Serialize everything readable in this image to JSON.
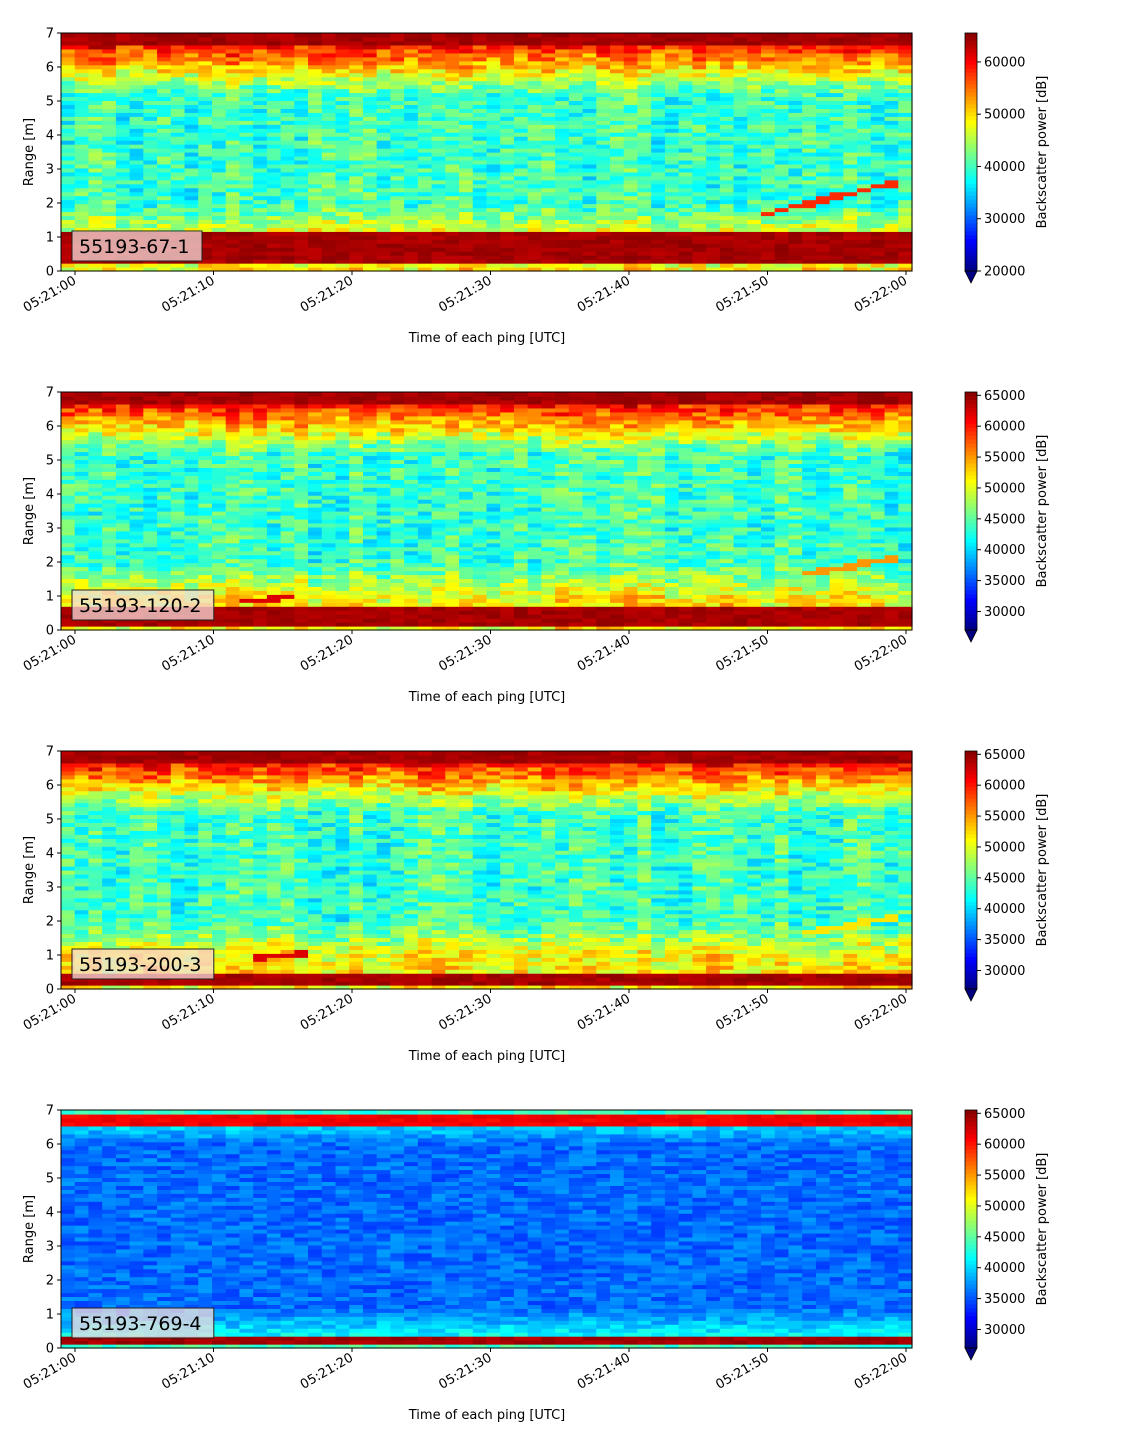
{
  "chart_data": [
    {
      "type": "heatmap",
      "label": "55193-67-1",
      "xlabel": "Time of each ping [UTC]",
      "ylabel": "Range [m]",
      "x_ticks": [
        "05:21:00",
        "05:21:10",
        "05:21:20",
        "05:21:30",
        "05:21:40",
        "05:21:50",
        "05:22:00"
      ],
      "xlim": [
        "05:21:00",
        "05:22:00"
      ],
      "y_ticks": [
        0,
        1,
        2,
        3,
        4,
        5,
        6,
        7
      ],
      "ylim": [
        0,
        7
      ],
      "colorbar": {
        "label": "Backscatter power [dB]",
        "ticks": [
          20000,
          30000,
          40000,
          50000,
          60000
        ],
        "range": [
          20000,
          65535
        ],
        "extend": "min",
        "colormap": "jet"
      },
      "features": [
        {
          "name": "bottom strong band",
          "range_m": [
            0.2,
            1.2
          ],
          "level": 65000
        },
        {
          "name": "surface band",
          "range_m": [
            6.6,
            7.0
          ],
          "level": 65000
        },
        {
          "name": "target trace",
          "time": [
            "05:21:50",
            "05:21:59"
          ],
          "range_m": [
            1.7,
            2.6
          ],
          "level": 58000
        }
      ]
    },
    {
      "type": "heatmap",
      "label": "55193-120-2",
      "xlabel": "Time of each ping [UTC]",
      "ylabel": "Range [m]",
      "x_ticks": [
        "05:21:00",
        "05:21:10",
        "05:21:20",
        "05:21:30",
        "05:21:40",
        "05:21:50",
        "05:22:00"
      ],
      "xlim": [
        "05:21:00",
        "05:22:00"
      ],
      "y_ticks": [
        0,
        1,
        2,
        3,
        4,
        5,
        6,
        7
      ],
      "ylim": [
        0,
        7
      ],
      "colorbar": {
        "label": "Backscatter power [dB]",
        "ticks": [
          30000,
          35000,
          40000,
          45000,
          50000,
          55000,
          60000,
          65000
        ],
        "range": [
          27000,
          65535
        ],
        "extend": "min",
        "colormap": "jet"
      },
      "features": [
        {
          "name": "bottom strong band",
          "range_m": [
            0.15,
            0.65
          ],
          "level": 65000
        },
        {
          "name": "surface band",
          "range_m": [
            6.6,
            7.0
          ],
          "level": 65000
        },
        {
          "name": "target trace",
          "time": [
            "05:21:53",
            "05:21:59"
          ],
          "range_m": [
            1.7,
            2.1
          ],
          "level": 55000
        },
        {
          "name": "target trace",
          "time": [
            "05:21:12",
            "05:21:16"
          ],
          "range_m": [
            0.85,
            1.0
          ],
          "level": 62000
        }
      ]
    },
    {
      "type": "heatmap",
      "label": "55193-200-3",
      "xlabel": "Time of each ping [UTC]",
      "ylabel": "Range [m]",
      "x_ticks": [
        "05:21:00",
        "05:21:10",
        "05:21:20",
        "05:21:30",
        "05:21:40",
        "05:21:50",
        "05:22:00"
      ],
      "xlim": [
        "05:21:00",
        "05:22:00"
      ],
      "y_ticks": [
        0,
        1,
        2,
        3,
        4,
        5,
        6,
        7
      ],
      "ylim": [
        0,
        7
      ],
      "colorbar": {
        "label": "Backscatter power [dB]",
        "ticks": [
          30000,
          35000,
          40000,
          45000,
          50000,
          55000,
          60000,
          65000
        ],
        "range": [
          27000,
          65535
        ],
        "extend": "min",
        "colormap": "jet"
      },
      "features": [
        {
          "name": "bottom strong band",
          "range_m": [
            0.1,
            0.45
          ],
          "level": 65000
        },
        {
          "name": "surface band",
          "range_m": [
            6.6,
            7.0
          ],
          "level": 65000
        },
        {
          "name": "target trace",
          "time": [
            "05:21:53",
            "05:21:59"
          ],
          "range_m": [
            1.7,
            2.1
          ],
          "level": 52000
        },
        {
          "name": "target trace",
          "time": [
            "05:21:13",
            "05:21:17"
          ],
          "range_m": [
            0.9,
            1.1
          ],
          "level": 62000
        }
      ]
    },
    {
      "type": "heatmap",
      "label": "55193-769-4",
      "xlabel": "Time of each ping [UTC]",
      "ylabel": "Range [m]",
      "x_ticks": [
        "05:21:00",
        "05:21:10",
        "05:21:20",
        "05:21:30",
        "05:21:40",
        "05:21:50",
        "05:22:00"
      ],
      "xlim": [
        "05:21:00",
        "05:22:00"
      ],
      "y_ticks": [
        0,
        1,
        2,
        3,
        4,
        5,
        6,
        7
      ],
      "ylim": [
        0,
        7
      ],
      "colorbar": {
        "label": "Backscatter power [dB]",
        "ticks": [
          30000,
          35000,
          40000,
          45000,
          50000,
          55000,
          60000,
          65000
        ],
        "range": [
          27000,
          65535
        ],
        "extend": "min",
        "colormap": "jet"
      },
      "features": [
        {
          "name": "bottom strong band",
          "range_m": [
            0.1,
            0.4
          ],
          "level": 65000
        },
        {
          "name": "surface band",
          "range_m": [
            6.5,
            6.9
          ],
          "level": 62000
        }
      ]
    }
  ]
}
